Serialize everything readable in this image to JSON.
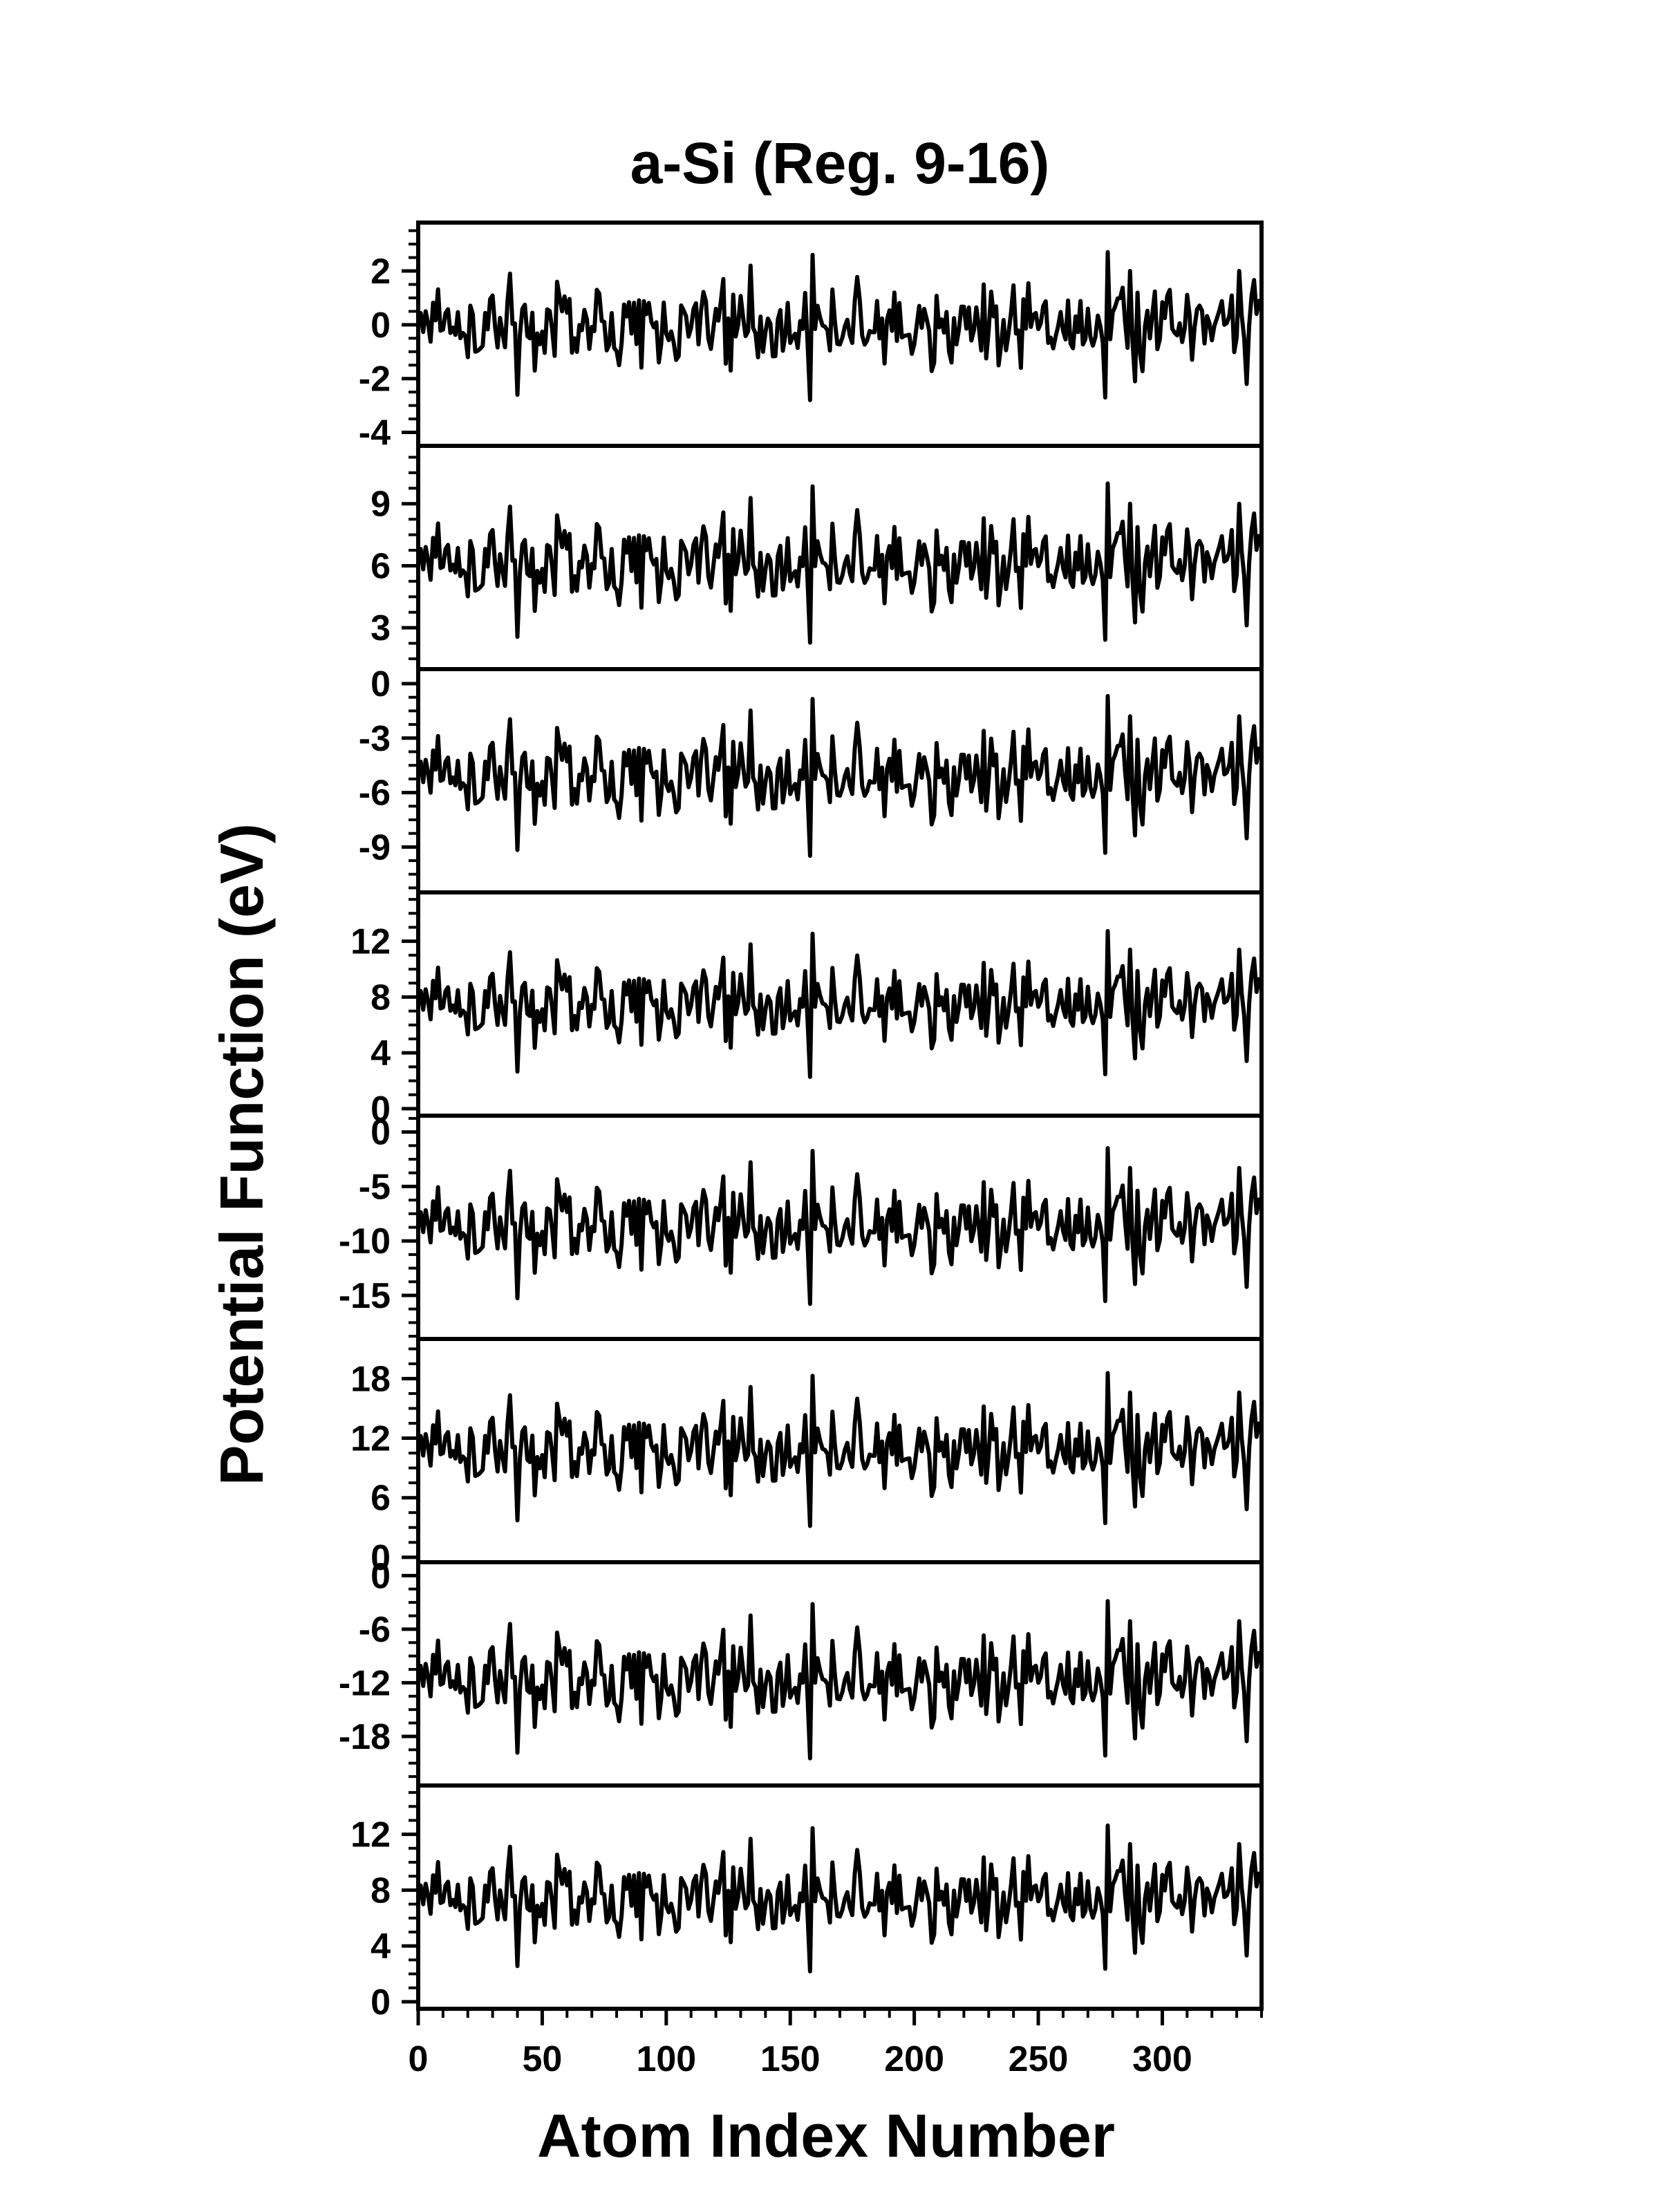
{
  "chart_data": {
    "type": "line",
    "title": "a-Si (Reg. 9-16)",
    "xlabel": "Atom Index Number",
    "ylabel": "Potential Function (eV)",
    "xlim": [
      0,
      340
    ],
    "x_ticks": [
      0,
      50,
      100,
      150,
      200,
      250,
      300
    ],
    "n_points": 340,
    "panels": [
      {
        "ylim": [
          -4.5,
          3.8
        ],
        "y_ticks": [
          2,
          0,
          -2,
          -4
        ],
        "y_tick_labels": [
          "2",
          "0",
          "-2",
          "-4"
        ],
        "offset": 0.0,
        "scale": 1.0
      },
      {
        "ylim": [
          1.0,
          11.8
        ],
        "y_ticks": [
          9,
          6,
          3
        ],
        "y_tick_labels": [
          "9",
          "6",
          "3"
        ],
        "offset": 6.2,
        "scale": 1.4
      },
      {
        "ylim": [
          -11.5,
          0.8
        ],
        "y_ticks": [
          0,
          -3,
          -6,
          -9
        ],
        "y_tick_labels": [
          "0",
          "-3",
          "-6",
          "-9"
        ],
        "offset": -5.0,
        "scale": 1.6
      },
      {
        "ylim": [
          -0.5,
          15.5
        ],
        "y_ticks": [
          12,
          8,
          4,
          0
        ],
        "y_tick_labels": [
          "12",
          "8",
          "4",
          "0"
        ],
        "offset": 7.6,
        "scale": 1.9
      },
      {
        "ylim": [
          -19.0,
          1.5
        ],
        "y_ticks": [
          0,
          -5,
          -10,
          -15
        ],
        "y_tick_labels": [
          "0",
          "-5",
          "-10",
          "-15"
        ],
        "offset": -8.5,
        "scale": 2.6
      },
      {
        "ylim": [
          -0.5,
          22.0
        ],
        "y_ticks": [
          18,
          12,
          6,
          0
        ],
        "y_tick_labels": [
          "18",
          "12",
          "6",
          "0"
        ],
        "offset": 11.0,
        "scale": 2.8
      },
      {
        "ylim": [
          -23.5,
          1.5
        ],
        "y_ticks": [
          0,
          -6,
          -12,
          -18
        ],
        "y_tick_labels": [
          "0",
          "-6",
          "-12",
          "-18"
        ],
        "offset": -11.5,
        "scale": 3.2
      },
      {
        "ylim": [
          -0.5,
          15.5
        ],
        "y_ticks": [
          12,
          8,
          4,
          0
        ],
        "y_tick_labels": [
          "12",
          "8",
          "4",
          "0"
        ],
        "offset": 7.5,
        "scale": 1.9
      }
    ],
    "grid": false,
    "legend": "none"
  }
}
